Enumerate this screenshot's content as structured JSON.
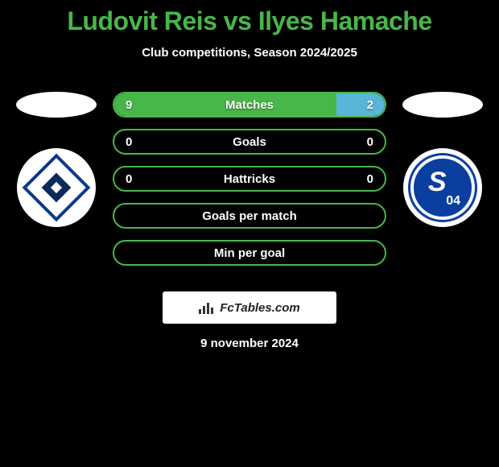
{
  "title": "Ludovit Reis vs Ilyes Hamache",
  "subtitle": "Club competitions, Season 2024/2025",
  "date": "9 november 2024",
  "attribution": "FcTables.com",
  "colors": {
    "accent": "#49b649",
    "right_fill": "#5bb5d8",
    "background": "#000000",
    "text": "#ffffff"
  },
  "stats": [
    {
      "label": "Matches",
      "left_val": "9",
      "right_val": "2",
      "left_pct": 82,
      "right_pct": 18,
      "show_vals": true
    },
    {
      "label": "Goals",
      "left_val": "0",
      "right_val": "0",
      "left_pct": 0,
      "right_pct": 0,
      "show_vals": true
    },
    {
      "label": "Hattricks",
      "left_val": "0",
      "right_val": "0",
      "left_pct": 0,
      "right_pct": 0,
      "show_vals": true
    },
    {
      "label": "Goals per match",
      "left_val": "",
      "right_val": "",
      "left_pct": 0,
      "right_pct": 0,
      "show_vals": false
    },
    {
      "label": "Min per goal",
      "left_val": "",
      "right_val": "",
      "left_pct": 0,
      "right_pct": 0,
      "show_vals": false
    }
  ],
  "left_club": {
    "name": "hamburger-sv"
  },
  "right_club": {
    "name": "schalke-04"
  }
}
